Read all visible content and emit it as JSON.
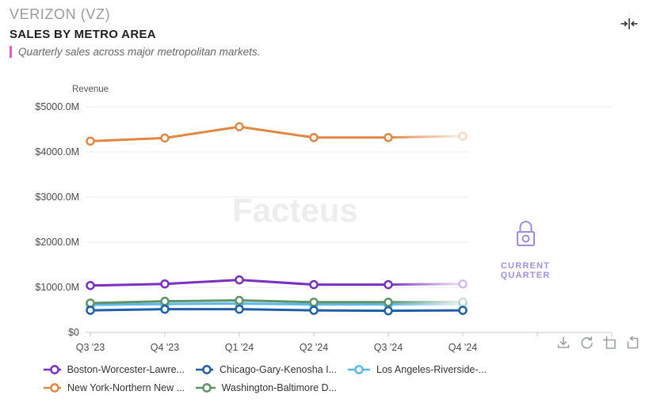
{
  "header": {
    "company": "VERIZON (VZ)",
    "title": "SALES BY METRO AREA",
    "subtitle": "Quarterly sales across major metropolitan markets."
  },
  "colors": {
    "accent": "#E05FC4",
    "lock": "#9D8BDB",
    "watermark": "#EDEDED",
    "axis_text": "#4a4a4a",
    "grid": "#EBEBEB",
    "axis_line": "#C9C9C9"
  },
  "chart_data": {
    "type": "line",
    "ylabel": "Revenue",
    "x_labels": [
      "Q3 '23",
      "Q4 '23",
      "Q1 '24",
      "Q2 '24",
      "Q3 '24",
      "Q4 '24"
    ],
    "y_ticks": [
      "$5000.0M",
      "$4000.0M",
      "$3000.0M",
      "$2000.0M",
      "$1000.0M",
      "$0"
    ],
    "y_tick_values": [
      5000,
      4000,
      3000,
      2000,
      1000,
      0
    ],
    "ylim": [
      0,
      5000
    ],
    "grid": true,
    "legend_position": "bottom",
    "series": [
      {
        "name": "Boston-Worcester-Lawre...",
        "color": "#7B2FC0",
        "values": [
          1040,
          1075,
          1165,
          1060,
          1060,
          1075
        ],
        "fade_last": true
      },
      {
        "name": "Chicago-Gary-Kenosha I...",
        "color": "#1F5FA8",
        "values": [
          490,
          515,
          515,
          490,
          480,
          490
        ],
        "fade_last": false
      },
      {
        "name": "Los Angeles-Riverside-...",
        "color": "#5BB8EA",
        "values": [
          610,
          630,
          640,
          620,
          620,
          625
        ],
        "fade_last": true
      },
      {
        "name": "New York-Northern New ...",
        "color": "#E08743",
        "values": [
          4240,
          4310,
          4560,
          4320,
          4320,
          4350
        ],
        "fade_last": true
      },
      {
        "name": "Washington-Baltimore D...",
        "color": "#5E9367",
        "values": [
          650,
          690,
          710,
          670,
          670,
          675
        ],
        "fade_last": true
      }
    ],
    "watermark": "Facteus",
    "locked_label": "CURRENT QUARTER"
  },
  "icons": {
    "header": "collapse-horizontal-icon",
    "overlay": "lock-icon",
    "toolbar": [
      "download-icon",
      "refresh-icon",
      "add-box-icon",
      "undo-box-icon"
    ]
  }
}
